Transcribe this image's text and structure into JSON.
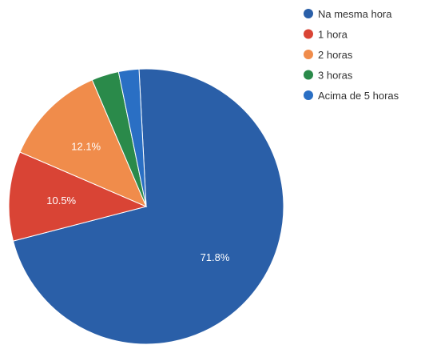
{
  "chart_data": {
    "type": "pie",
    "title": "",
    "legend_position": "top-right",
    "start_angle_deg": -3,
    "slices": [
      {
        "label": "Na mesma hora",
        "value": 71.8,
        "display": "71.8%",
        "color": "#2a5fa8"
      },
      {
        "label": "1 hora",
        "value": 10.5,
        "display": "10.5%",
        "color": "#d94435"
      },
      {
        "label": "2 horas",
        "value": 12.1,
        "display": "12.1%",
        "color": "#f08c4b"
      },
      {
        "label": "3 horas",
        "value": 3.2,
        "display": "",
        "color": "#2a8a4a"
      },
      {
        "label": "Acima de 5 horas",
        "value": 2.4,
        "display": "",
        "color": "#2a6fc4"
      }
    ]
  }
}
